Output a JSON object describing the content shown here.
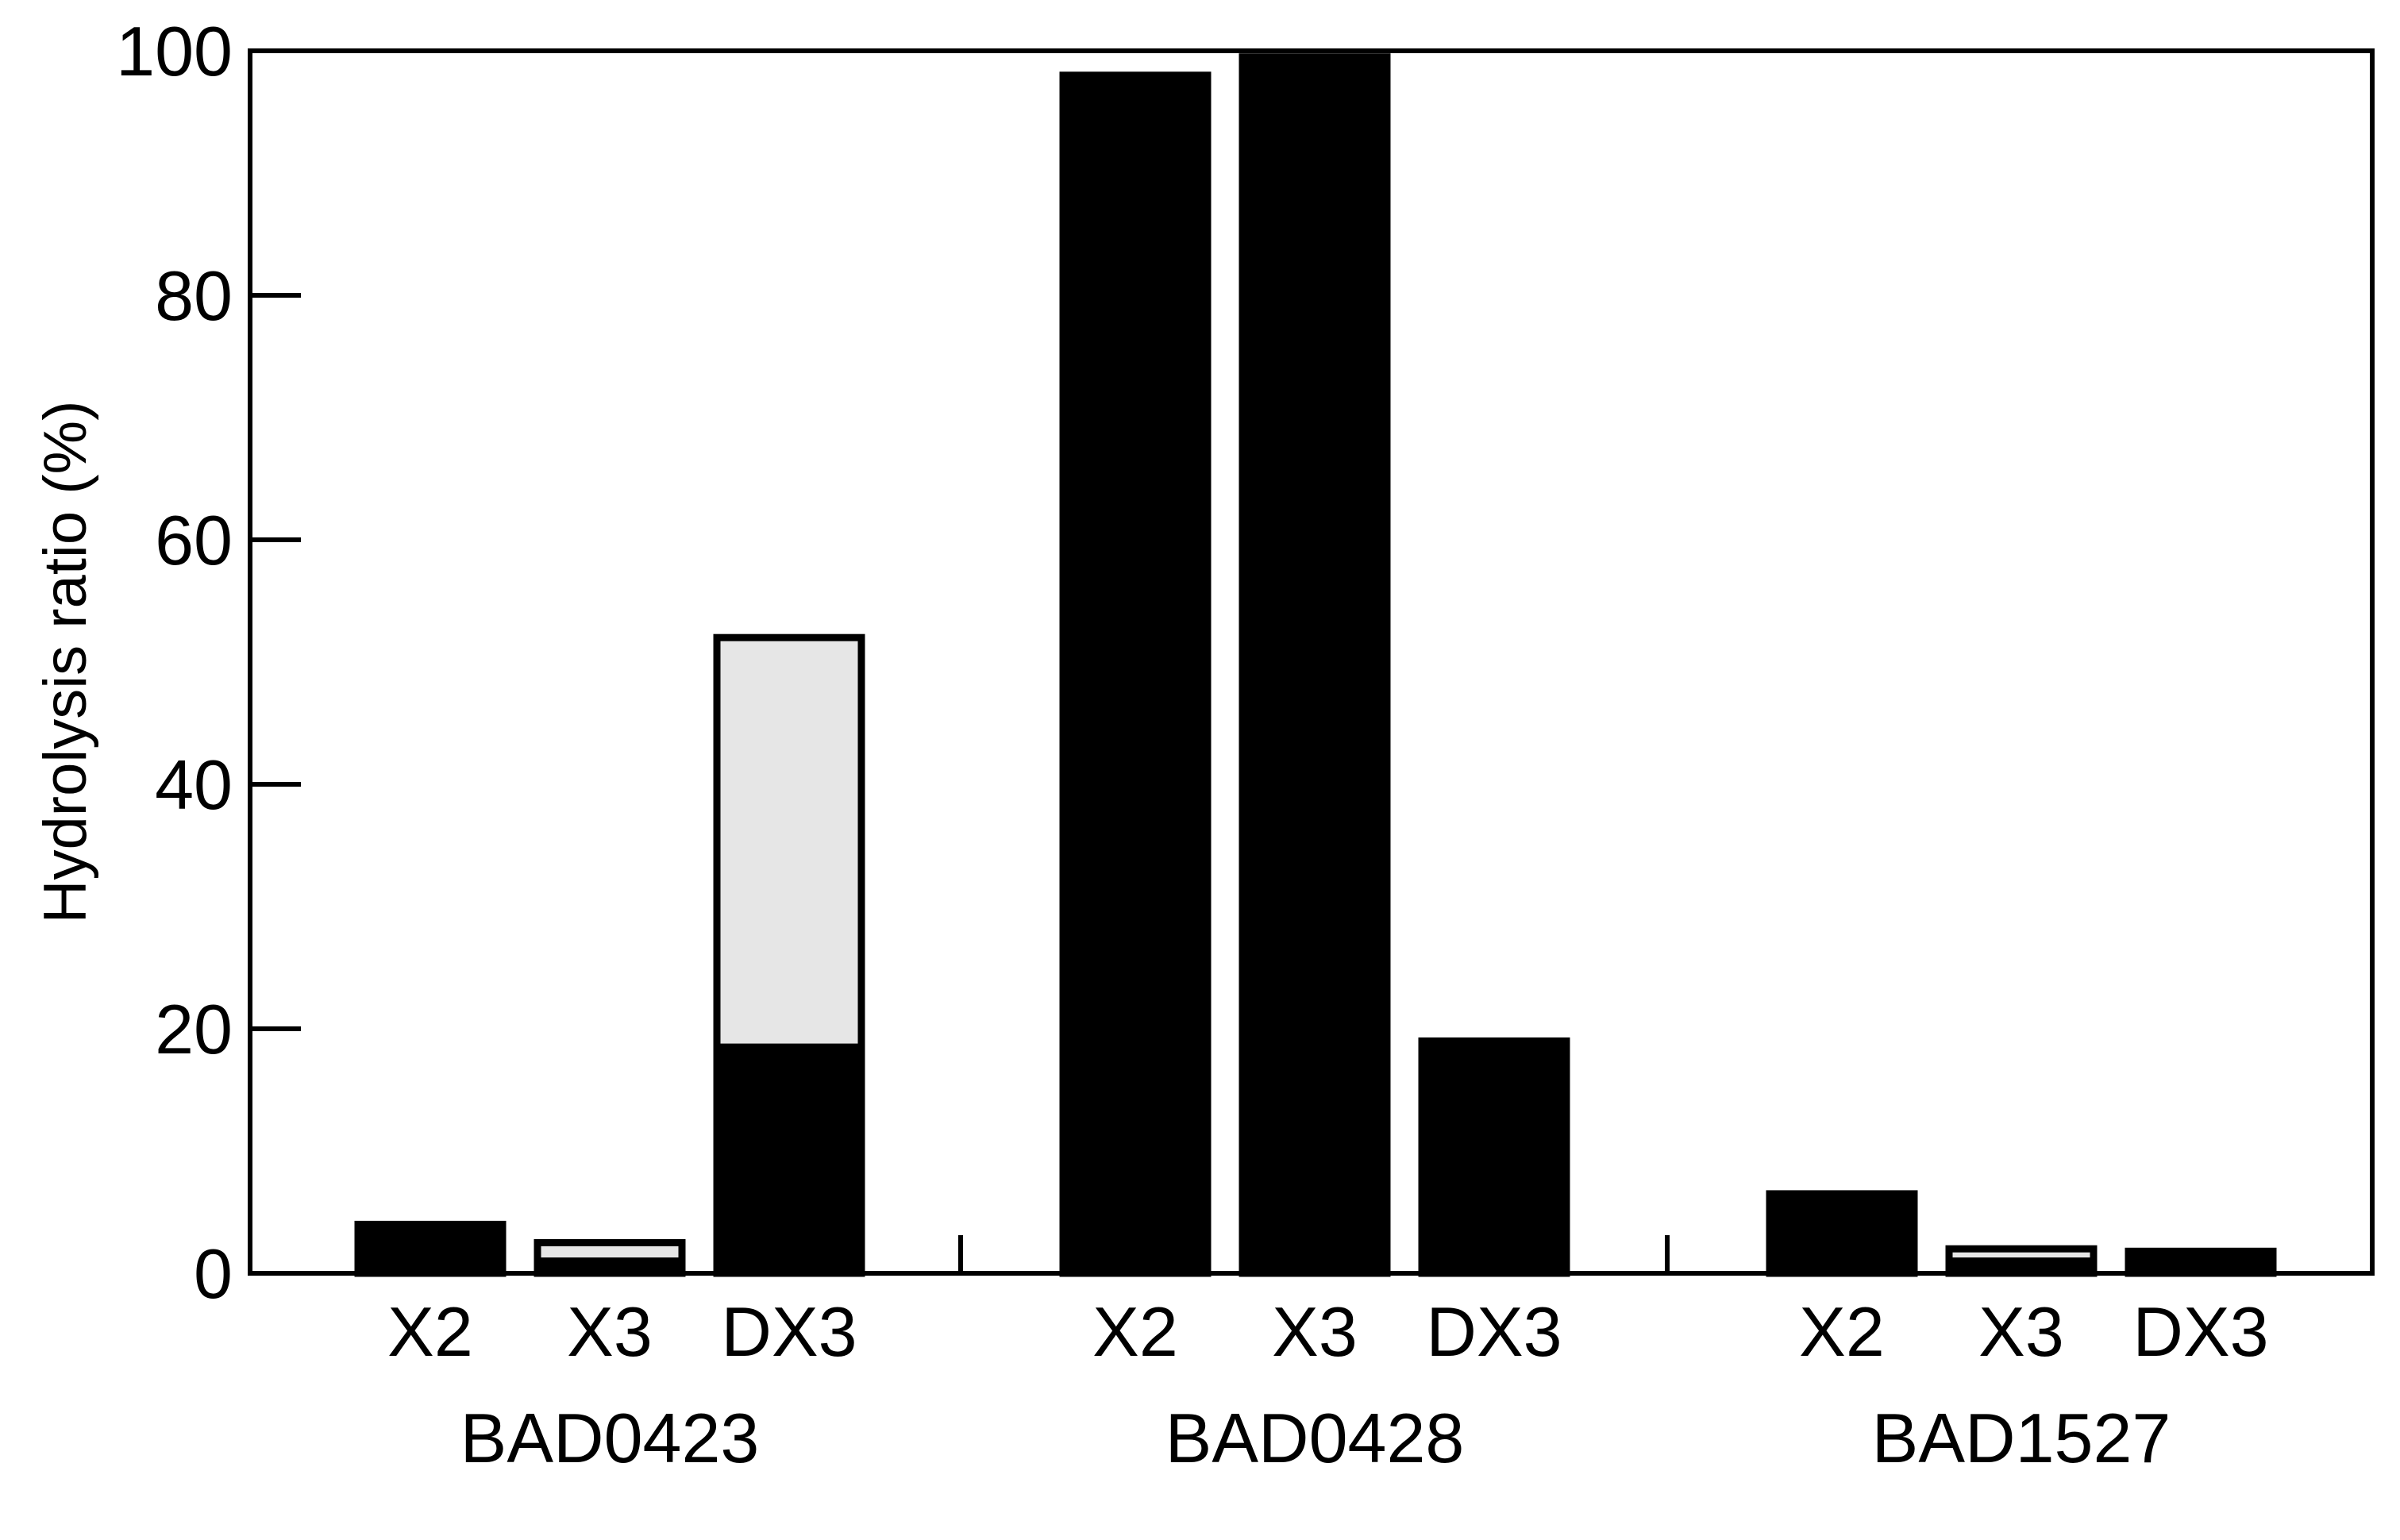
{
  "chart_data": {
    "type": "bar",
    "stacked": true,
    "title": "",
    "xlabel": "",
    "ylabel": "Hydrolysis ratio (%)",
    "ylim": [
      0,
      100
    ],
    "yticks": [
      0,
      20,
      40,
      60,
      80,
      100
    ],
    "grid": false,
    "legend": "none",
    "groups": [
      "BAD0423",
      "BAD0428",
      "BAD1527"
    ],
    "categories": [
      "X2",
      "X3",
      "DX3"
    ],
    "series": [
      {
        "color": "#000000",
        "values": [
          [
            4,
            1,
            18.5
          ],
          [
            98,
            99.5,
            18.5
          ],
          [
            6.5,
            1,
            1.8
          ]
        ]
      },
      {
        "color": "#e6e6e6",
        "values": [
          [
            0,
            1.5,
            33.5
          ],
          [
            0,
            0,
            0.5
          ],
          [
            0,
            1,
            0
          ]
        ]
      }
    ]
  }
}
